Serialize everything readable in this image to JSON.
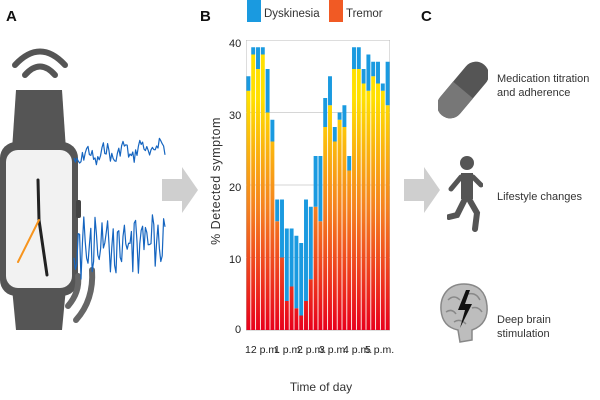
{
  "panels": {
    "a": "A",
    "b": "B",
    "c": "C"
  },
  "legend": {
    "dyskinesia": {
      "label": "Dyskinesia",
      "color": "#1a9ae0"
    },
    "tremor": {
      "label": "Tremor",
      "color": "#f15a24"
    }
  },
  "chart_data": {
    "type": "bar",
    "stacked": true,
    "ylabel": "% Detected symptom",
    "xlabel": "Time of day",
    "ylim": [
      0,
      40
    ],
    "yticks": [
      0,
      10,
      20,
      30,
      40
    ],
    "xtick_labels": [
      "12 p.m.",
      "1 p.m.",
      "2 p.m.",
      "3 p.m.",
      "4 p.m.",
      "5 p.m."
    ],
    "tremor_gradient": [
      "#e8001c",
      "#f58220",
      "#ffe000"
    ],
    "categories": [
      "b1",
      "b2",
      "b3",
      "b4",
      "b5",
      "b6",
      "b7",
      "b8",
      "b9",
      "b10",
      "b11",
      "b12",
      "b13",
      "b14",
      "b15",
      "b16",
      "b17",
      "b18",
      "b19",
      "b20",
      "b21",
      "b22",
      "b23",
      "b24",
      "b25",
      "b26",
      "b27",
      "b28",
      "b29",
      "b30"
    ],
    "series": [
      {
        "name": "Tremor",
        "values": [
          33,
          38,
          36,
          38,
          30,
          26,
          15,
          10,
          4,
          6,
          3,
          2,
          4,
          7,
          17,
          15,
          28,
          31,
          26,
          29,
          28,
          22,
          36,
          36,
          34,
          33,
          35,
          34,
          33,
          31
        ]
      },
      {
        "name": "Dyskinesia",
        "values": [
          2,
          1,
          3,
          1,
          6,
          3,
          3,
          8,
          10,
          8,
          10,
          10,
          14,
          10,
          7,
          9,
          4,
          4,
          2,
          1,
          3,
          2,
          3,
          3,
          2,
          5,
          2,
          3,
          1,
          6
        ]
      }
    ]
  },
  "outcomes": {
    "medication": {
      "label": "Medication titration and adherence",
      "icon": "pill-icon"
    },
    "lifestyle": {
      "label": "Lifestyle changes",
      "icon": "running-person-icon"
    },
    "dbs": {
      "label": "Deep brain stimulation",
      "icon": "brain-icon"
    }
  }
}
